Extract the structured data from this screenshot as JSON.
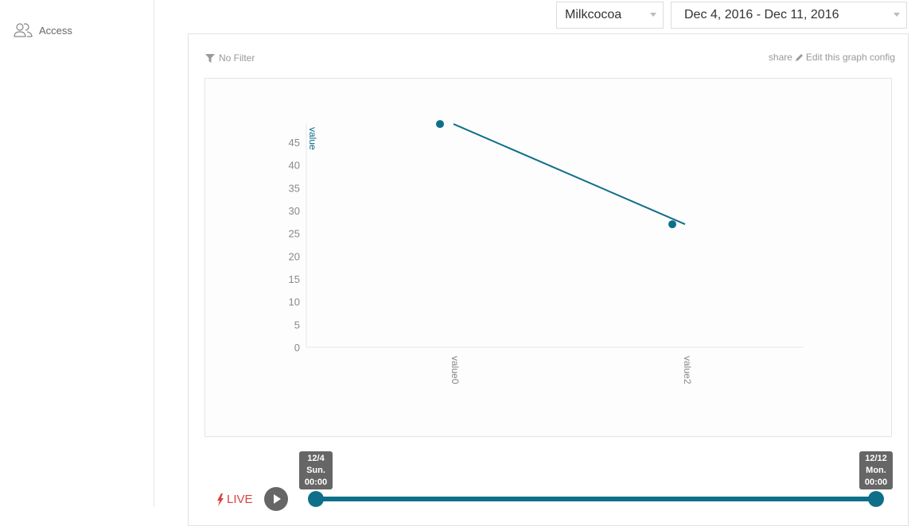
{
  "sidebar": {
    "items": [
      {
        "label": "Access",
        "icon": "users-icon"
      }
    ]
  },
  "header": {
    "source_select": "Milkcocoa",
    "date_range": "Dec 4, 2016 - Dec 11, 2016"
  },
  "card": {
    "filter": "No Filter",
    "share": "share",
    "edit": "Edit this graph config"
  },
  "chart_data": {
    "type": "line",
    "categories": [
      "value0",
      "value2"
    ],
    "series": [
      {
        "values": [
          49,
          27
        ]
      }
    ],
    "ylabel": "value",
    "yticks": [
      "0",
      "5",
      "10",
      "15",
      "20",
      "25",
      "30",
      "35",
      "40",
      "45"
    ],
    "ylim": [
      0,
      49
    ],
    "color": "#0e6f8a",
    "grid": false
  },
  "timeline": {
    "live": "LIVE",
    "start": {
      "date": "12/4",
      "day": "Sun.",
      "time": "00:00"
    },
    "end": {
      "date": "12/12",
      "day": "Mon.",
      "time": "00:00"
    },
    "color": "#0e6f8a"
  }
}
